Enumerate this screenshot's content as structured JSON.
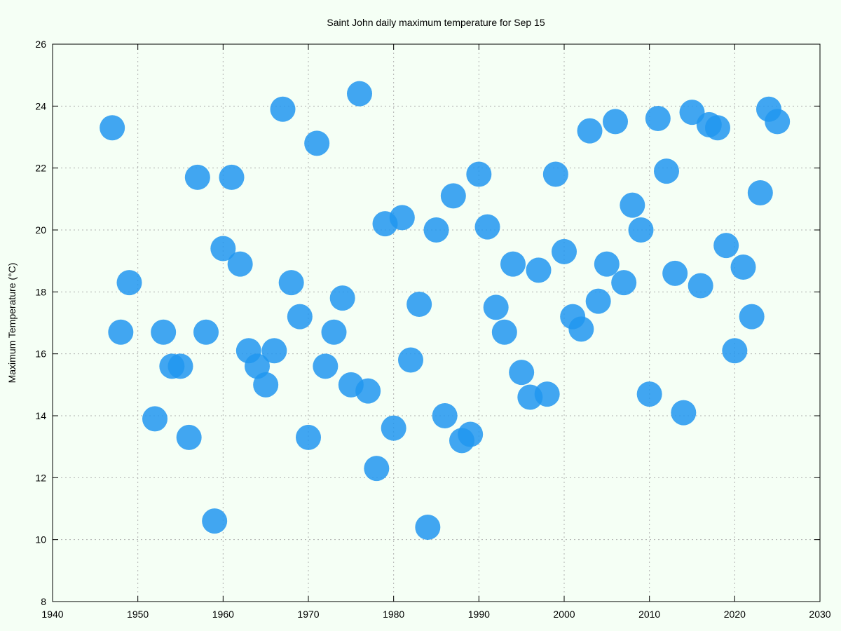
{
  "chart_data": {
    "type": "scatter",
    "title": "Saint John daily maximum temperature for Sep 15",
    "xlabel": "",
    "ylabel": "Maximum Temperature (°C)",
    "xlim": [
      1940,
      2030
    ],
    "ylim": [
      8,
      26
    ],
    "xticks": [
      1940,
      1950,
      1960,
      1970,
      1980,
      1990,
      2000,
      2010,
      2020,
      2030
    ],
    "yticks": [
      8,
      10,
      12,
      14,
      16,
      18,
      20,
      22,
      24,
      26
    ],
    "grid": true,
    "marker_color": "#2196f0",
    "background_color": "#f5fff5",
    "series": [
      {
        "points": [
          [
            1947,
            23.3
          ],
          [
            1948,
            16.7
          ],
          [
            1949,
            18.3
          ],
          [
            1952,
            13.9
          ],
          [
            1953,
            16.7
          ],
          [
            1954,
            15.6
          ],
          [
            1955,
            15.6
          ],
          [
            1956,
            13.3
          ],
          [
            1957,
            21.7
          ],
          [
            1958,
            16.7
          ],
          [
            1959,
            10.6
          ],
          [
            1960,
            19.4
          ],
          [
            1961,
            21.7
          ],
          [
            1962,
            18.9
          ],
          [
            1963,
            16.1
          ],
          [
            1964,
            15.6
          ],
          [
            1965,
            15.0
          ],
          [
            1966,
            16.1
          ],
          [
            1967,
            23.9
          ],
          [
            1968,
            18.3
          ],
          [
            1969,
            17.2
          ],
          [
            1970,
            13.3
          ],
          [
            1971,
            22.8
          ],
          [
            1972,
            15.6
          ],
          [
            1973,
            16.7
          ],
          [
            1974,
            17.8
          ],
          [
            1975,
            15.0
          ],
          [
            1976,
            24.4
          ],
          [
            1977,
            14.8
          ],
          [
            1978,
            12.3
          ],
          [
            1979,
            20.2
          ],
          [
            1980,
            13.6
          ],
          [
            1981,
            20.4
          ],
          [
            1982,
            15.8
          ],
          [
            1983,
            17.6
          ],
          [
            1984,
            10.4
          ],
          [
            1985,
            20.0
          ],
          [
            1986,
            14.0
          ],
          [
            1987,
            21.1
          ],
          [
            1988,
            13.2
          ],
          [
            1989,
            13.4
          ],
          [
            1990,
            21.8
          ],
          [
            1991,
            20.1
          ],
          [
            1992,
            17.5
          ],
          [
            1993,
            16.7
          ],
          [
            1994,
            18.9
          ],
          [
            1995,
            15.4
          ],
          [
            1996,
            14.6
          ],
          [
            1997,
            18.7
          ],
          [
            1998,
            14.7
          ],
          [
            1999,
            21.8
          ],
          [
            2000,
            19.3
          ],
          [
            2001,
            17.2
          ],
          [
            2002,
            16.8
          ],
          [
            2003,
            23.2
          ],
          [
            2004,
            17.7
          ],
          [
            2005,
            18.9
          ],
          [
            2006,
            23.5
          ],
          [
            2007,
            18.3
          ],
          [
            2008,
            20.8
          ],
          [
            2009,
            20.0
          ],
          [
            2010,
            14.7
          ],
          [
            2011,
            23.6
          ],
          [
            2012,
            21.9
          ],
          [
            2013,
            18.6
          ],
          [
            2014,
            14.1
          ],
          [
            2015,
            23.8
          ],
          [
            2016,
            18.2
          ],
          [
            2017,
            23.4
          ],
          [
            2018,
            23.3
          ],
          [
            2019,
            19.5
          ],
          [
            2020,
            16.1
          ],
          [
            2021,
            18.8
          ],
          [
            2022,
            17.2
          ],
          [
            2023,
            21.2
          ],
          [
            2024,
            23.9
          ],
          [
            2025,
            23.5
          ]
        ]
      }
    ]
  }
}
